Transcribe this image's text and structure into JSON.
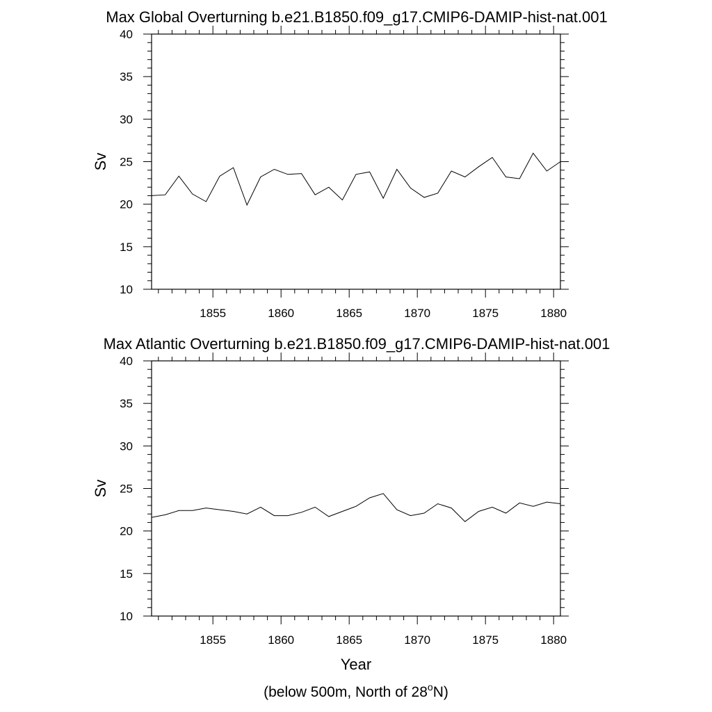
{
  "chart_data": [
    {
      "type": "line",
      "title": "Max Global Overturning b.e21.B1850.f09_g17.CMIP6-DAMIP-hist-nat.001",
      "xlabel": "",
      "ylabel": "Sv",
      "xlim": [
        1850.5,
        1880.5
      ],
      "ylim": [
        10,
        40
      ],
      "xticks": [
        1855,
        1860,
        1865,
        1870,
        1875,
        1880
      ],
      "yticks": [
        10,
        15,
        20,
        25,
        30,
        35,
        40
      ],
      "x": [
        1850.5,
        1851.5,
        1852.5,
        1853.5,
        1854.5,
        1855.5,
        1856.5,
        1857.5,
        1858.5,
        1859.5,
        1860.5,
        1861.5,
        1862.5,
        1863.5,
        1864.5,
        1865.5,
        1866.5,
        1867.5,
        1868.5,
        1869.5,
        1870.5,
        1871.5,
        1872.5,
        1873.5,
        1874.5,
        1875.5,
        1876.5,
        1877.5,
        1878.5,
        1879.5,
        1880.5
      ],
      "series": [
        {
          "values": [
            21.0,
            21.1,
            23.3,
            21.2,
            20.3,
            23.3,
            24.3,
            19.9,
            23.2,
            24.1,
            23.5,
            23.6,
            21.1,
            22.0,
            20.5,
            23.5,
            23.8,
            20.7,
            24.1,
            21.9,
            20.8,
            21.3,
            23.9,
            23.2,
            24.4,
            25.5,
            23.2,
            23.0,
            26.0,
            23.9,
            25.0
          ]
        }
      ],
      "grid": false,
      "color": "#000000"
    },
    {
      "type": "line",
      "title": "Max Atlantic Overturning b.e21.B1850.f09_g17.CMIP6-DAMIP-hist-nat.001",
      "xlabel": "Year",
      "ylabel": "Sv",
      "xlim": [
        1850.5,
        1880.5
      ],
      "ylim": [
        10,
        40
      ],
      "xticks": [
        1855,
        1860,
        1865,
        1870,
        1875,
        1880
      ],
      "yticks": [
        10,
        15,
        20,
        25,
        30,
        35,
        40
      ],
      "x": [
        1850.5,
        1851.5,
        1852.5,
        1853.5,
        1854.5,
        1855.5,
        1856.5,
        1857.5,
        1858.5,
        1859.5,
        1860.5,
        1861.5,
        1862.5,
        1863.5,
        1864.5,
        1865.5,
        1866.5,
        1867.5,
        1868.5,
        1869.5,
        1870.5,
        1871.5,
        1872.5,
        1873.5,
        1874.5,
        1875.5,
        1876.5,
        1877.5,
        1878.5,
        1879.5,
        1880.5
      ],
      "series": [
        {
          "values": [
            21.6,
            21.9,
            22.4,
            22.4,
            22.7,
            22.5,
            22.3,
            22.0,
            22.8,
            21.8,
            21.8,
            22.2,
            22.8,
            21.7,
            22.3,
            22.9,
            23.9,
            24.4,
            22.5,
            21.8,
            22.1,
            23.2,
            22.7,
            21.1,
            22.3,
            22.8,
            22.1,
            23.3,
            22.9,
            23.4,
            23.2
          ]
        }
      ],
      "grid": false,
      "color": "#000000"
    }
  ],
  "footer": {
    "pre": "(below 500m, North of 28",
    "sup": "o",
    "post": "N)"
  }
}
